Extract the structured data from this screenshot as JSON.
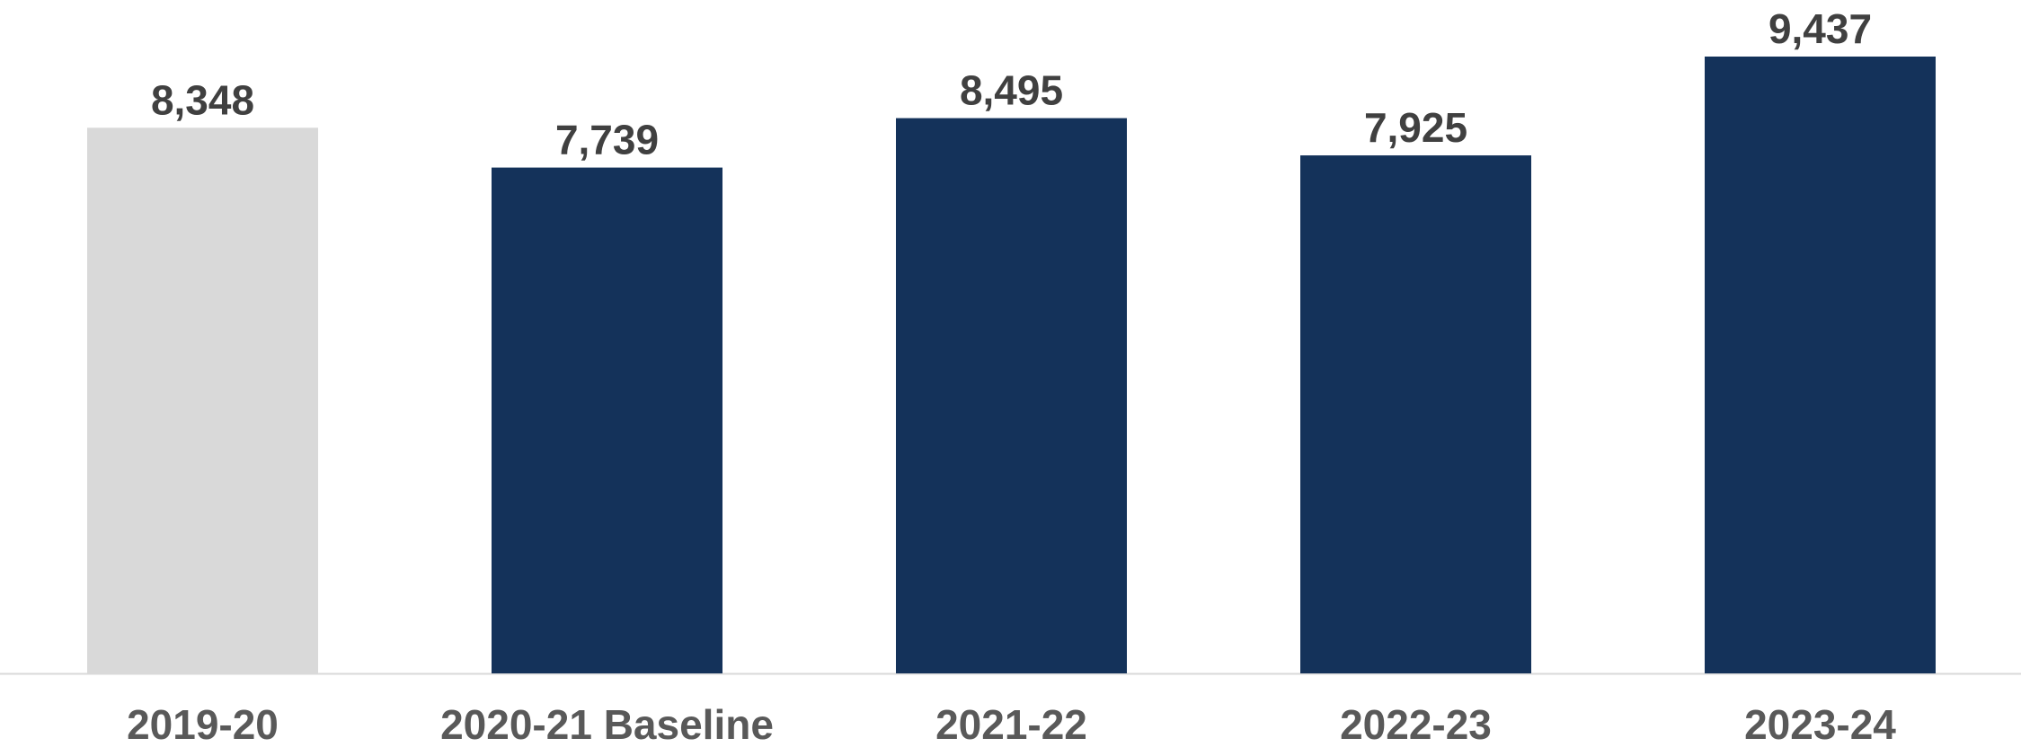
{
  "chart_data": {
    "type": "bar",
    "title": "",
    "xlabel": "",
    "ylabel": "",
    "categories": [
      "2019-20",
      "2020-21 Baseline",
      "2021-22",
      "2022-23",
      "2023-24"
    ],
    "values": [
      8348,
      7739,
      8495,
      7925,
      9437
    ],
    "value_labels": [
      "8,348",
      "7,739",
      "8,495",
      "7,925",
      "9,437"
    ],
    "bar_colors": [
      "#d9d9d9",
      "#14325a",
      "#14325a",
      "#14325a",
      "#14325a"
    ],
    "ylim": [
      0,
      9437
    ],
    "grid": false,
    "legend": "none"
  }
}
